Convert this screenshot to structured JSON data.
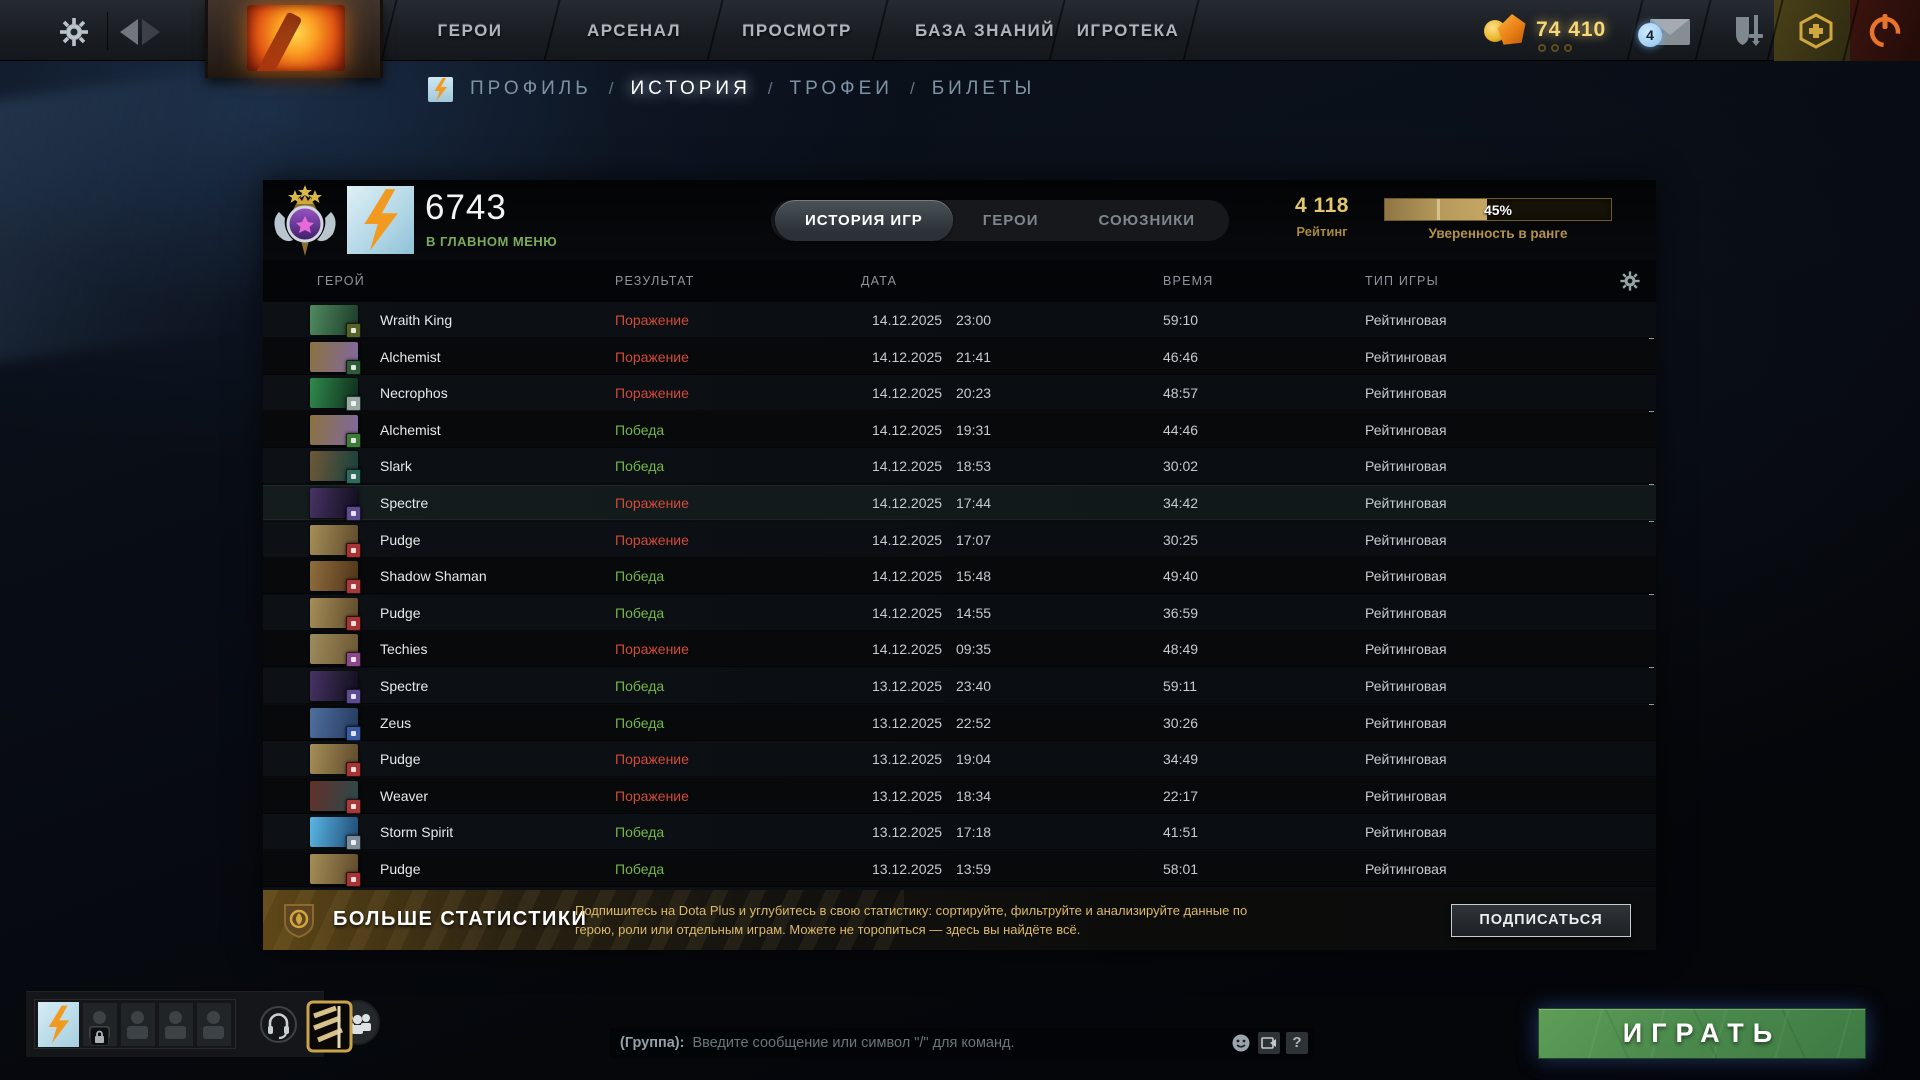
{
  "topbar": {
    "nav_items": [
      "ГЕРОИ",
      "АРСЕНАЛ",
      "ПРОСМОТР",
      "БАЗА ЗНАНИЙ",
      "ИГРОТЕКА"
    ],
    "currency_amount": "74 410",
    "mail_badge_count": "4"
  },
  "breadcrumb": {
    "separator": "/",
    "items": [
      {
        "label": "ПРОФИЛЬ",
        "active": false
      },
      {
        "label": "ИСТОРИЯ",
        "active": true
      },
      {
        "label": "ТРОФЕИ",
        "active": false
      },
      {
        "label": "БИЛЕТЫ",
        "active": false
      }
    ]
  },
  "profile": {
    "player_name": "6743",
    "status": "В ГЛАВНОМ МЕНЮ",
    "tabs": [
      {
        "label": "ИСТОРИЯ ИГР",
        "active": true
      },
      {
        "label": "ГЕРОИ",
        "active": false
      },
      {
        "label": "СОЮЗНИКИ",
        "active": false
      }
    ],
    "rating_value": "4 118",
    "rating_label": "Рейтинг",
    "confidence_percent": 45,
    "confidence_percent_label": "45%",
    "confidence_label": "Уверенность в ранге"
  },
  "match_table": {
    "columns": [
      "ГЕРОЙ",
      "РЕЗУЛЬТАТ",
      "ДАТА",
      "ВРЕМЯ",
      "ТИП ИГРЫ"
    ],
    "rows": [
      {
        "hero": "Wraith King",
        "result": "Поражение",
        "outcome": "loss",
        "date": "14.12.2025",
        "time": "23:00",
        "duration": "59:10",
        "mode": "Рейтинговая",
        "highlight": false,
        "portrait": {
          "from": "#4f8a5e",
          "to": "#1d3b2a",
          "badge": "#556328"
        }
      },
      {
        "hero": "Alchemist",
        "result": "Поражение",
        "outcome": "loss",
        "date": "14.12.2025",
        "time": "21:41",
        "duration": "46:46",
        "mode": "Рейтинговая",
        "highlight": false,
        "portrait": {
          "from": "#8a7340",
          "to": "#8268a0",
          "badge": "#2f5c37"
        }
      },
      {
        "hero": "Necrophos",
        "result": "Поражение",
        "outcome": "loss",
        "date": "14.12.2025",
        "time": "20:23",
        "duration": "48:57",
        "mode": "Рейтинговая",
        "highlight": false,
        "portrait": {
          "from": "#2f8a4c",
          "to": "#0f2c1c",
          "badge": "#97aaa4"
        }
      },
      {
        "hero": "Alchemist",
        "result": "Победа",
        "outcome": "win",
        "date": "14.12.2025",
        "time": "19:31",
        "duration": "44:46",
        "mode": "Рейтинговая",
        "highlight": false,
        "portrait": {
          "from": "#8a7340",
          "to": "#8268a0",
          "badge": "#3f7a3a"
        }
      },
      {
        "hero": "Slark",
        "result": "Победа",
        "outcome": "win",
        "date": "14.12.2025",
        "time": "18:53",
        "duration": "30:02",
        "mode": "Рейтинговая",
        "highlight": false,
        "portrait": {
          "from": "#6f5838",
          "to": "#17403c",
          "badge": "#2e6b5e"
        }
      },
      {
        "hero": "Spectre",
        "result": "Поражение",
        "outcome": "loss",
        "date": "14.12.2025",
        "time": "17:44",
        "duration": "34:42",
        "mode": "Рейтинговая",
        "highlight": true,
        "portrait": {
          "from": "#463364",
          "to": "#110d1c",
          "badge": "#5d4b92"
        }
      },
      {
        "hero": "Pudge",
        "result": "Поражение",
        "outcome": "loss",
        "date": "14.12.2025",
        "time": "17:07",
        "duration": "30:25",
        "mode": "Рейтинговая",
        "highlight": false,
        "portrait": {
          "from": "#a68e57",
          "to": "#5e4a2c",
          "badge": "#a63434"
        }
      },
      {
        "hero": "Shadow Shaman",
        "result": "Победа",
        "outcome": "win",
        "date": "14.12.2025",
        "time": "15:48",
        "duration": "49:40",
        "mode": "Рейтинговая",
        "highlight": false,
        "portrait": {
          "from": "#8f6d3d",
          "to": "#4f3418",
          "badge": "#a63a3a"
        }
      },
      {
        "hero": "Pudge",
        "result": "Победа",
        "outcome": "win",
        "date": "14.12.2025",
        "time": "14:55",
        "duration": "36:59",
        "mode": "Рейтинговая",
        "highlight": false,
        "portrait": {
          "from": "#a68e57",
          "to": "#5e4a2c",
          "badge": "#a63434"
        }
      },
      {
        "hero": "Techies",
        "result": "Поражение",
        "outcome": "loss",
        "date": "14.12.2025",
        "time": "09:35",
        "duration": "48:49",
        "mode": "Рейтинговая",
        "highlight": false,
        "portrait": {
          "from": "#9d8c5c",
          "to": "#6a5632",
          "badge": "#8a4a8a"
        }
      },
      {
        "hero": "Spectre",
        "result": "Победа",
        "outcome": "win",
        "date": "13.12.2025",
        "time": "23:40",
        "duration": "59:11",
        "mode": "Рейтинговая",
        "highlight": false,
        "portrait": {
          "from": "#463364",
          "to": "#110d1c",
          "badge": "#5d4b92"
        }
      },
      {
        "hero": "Zeus",
        "result": "Победа",
        "outcome": "win",
        "date": "13.12.2025",
        "time": "22:52",
        "duration": "30:26",
        "mode": "Рейтинговая",
        "highlight": false,
        "portrait": {
          "from": "#4f6f9e",
          "to": "#243a5e",
          "badge": "#3a5aa8"
        }
      },
      {
        "hero": "Pudge",
        "result": "Поражение",
        "outcome": "loss",
        "date": "13.12.2025",
        "time": "19:04",
        "duration": "34:49",
        "mode": "Рейтинговая",
        "highlight": false,
        "portrait": {
          "from": "#a68e57",
          "to": "#5e4a2c",
          "badge": "#a63434"
        }
      },
      {
        "hero": "Weaver",
        "result": "Поражение",
        "outcome": "loss",
        "date": "13.12.2025",
        "time": "18:34",
        "duration": "22:17",
        "mode": "Рейтинговая",
        "highlight": false,
        "portrait": {
          "from": "#63302a",
          "to": "#2a4a4a",
          "badge": "#a63a3a"
        }
      },
      {
        "hero": "Storm Spirit",
        "result": "Победа",
        "outcome": "win",
        "date": "13.12.2025",
        "time": "17:18",
        "duration": "41:51",
        "mode": "Рейтинговая",
        "highlight": false,
        "portrait": {
          "from": "#59b6e4",
          "to": "#1f4a74",
          "badge": "#7d8c9b"
        }
      },
      {
        "hero": "Pudge",
        "result": "Победа",
        "outcome": "win",
        "date": "13.12.2025",
        "time": "13:59",
        "duration": "58:01",
        "mode": "Рейтинговая",
        "highlight": false,
        "portrait": {
          "from": "#a68e57",
          "to": "#5e4a2c",
          "badge": "#a63434"
        }
      }
    ],
    "partial_row": {
      "portrait": {
        "from": "#8a7a4a",
        "to": "#4a5a3a"
      }
    }
  },
  "dota_plus_banner": {
    "title": "БОЛЬШЕ СТАТИСТИКИ",
    "description_line1": "Подпишитесь на Dota Plus и углубитесь в свою статистику: сортируйте, фильтруйте и анализируйте данные по",
    "description_line2": "герою, роли или отдельным играм. Можете не торопиться — здесь вы найдёте всё.",
    "subscribe_button": "ПОДПИСАТЬСЯ"
  },
  "bottom_bar": {
    "chat_channel_label": "(Группа):",
    "chat_placeholder": "Введите сообщение или символ \"/\" для команд.",
    "help_button": "?",
    "play_button": "ИГРАТЬ"
  },
  "colors": {
    "win": "#74b84a",
    "loss": "#d24b38",
    "gold": "#e3c76e",
    "status_green": "#7cab59"
  }
}
